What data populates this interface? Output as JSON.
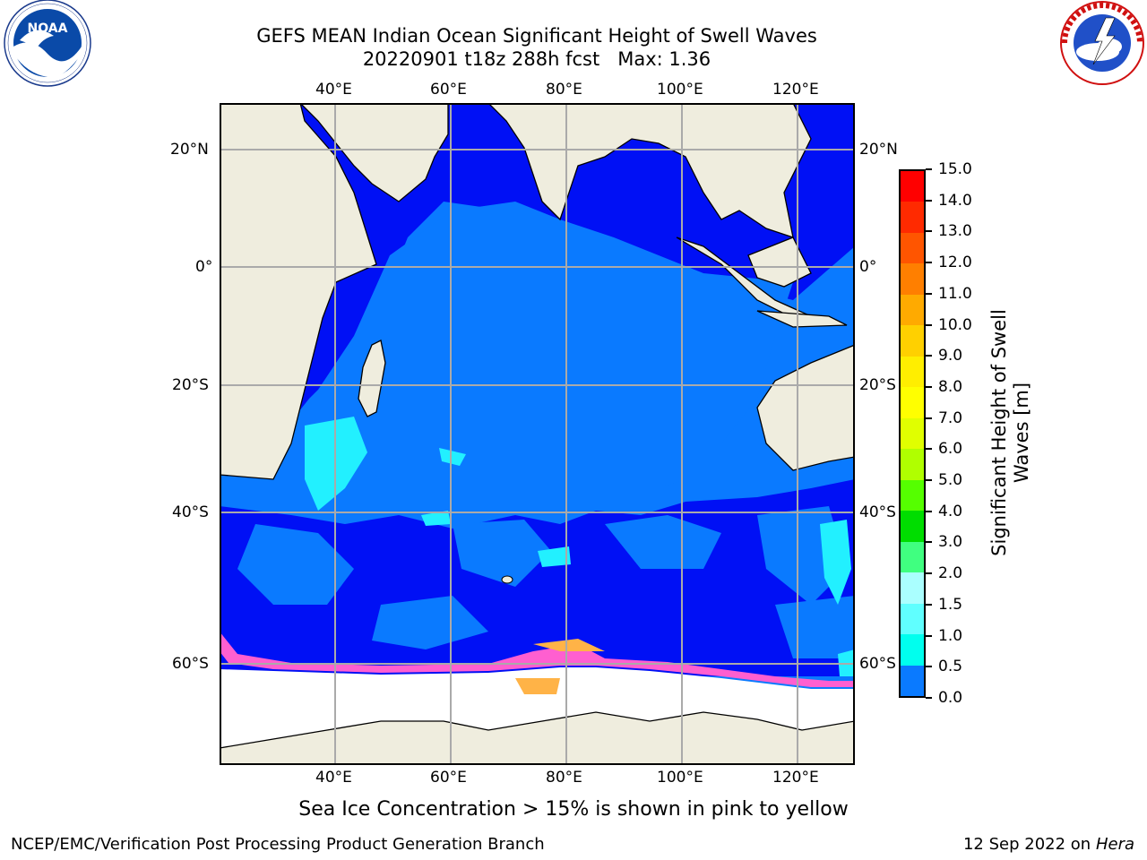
{
  "title": {
    "line1": "GEFS MEAN Indian Ocean Significant Height of Swell Waves",
    "line2": "20220901 t18z 288h fcst   Max: 1.36"
  },
  "logos": {
    "noaa_text": "NOAA",
    "noaa_ring": "NATIONAL OCEANIC AND ATMOSPHERIC ADMINISTRATION · U.S. DEPARTMENT OF COMMERCE",
    "nws_ring": "NATIONAL WEATHER SERVICE"
  },
  "map": {
    "lon_ticks": [
      "40°E",
      "60°E",
      "80°E",
      "100°E",
      "120°E"
    ],
    "lat_ticks": [
      "20°N",
      "0°",
      "20°S",
      "40°S",
      "60°S"
    ],
    "colors": {
      "land": "#efedde",
      "sea_dark": "#0010f5",
      "sea_mid": "#0a7aff",
      "sea_light": "#22f0ff",
      "ice_pink": "#ff5fd0",
      "ice_orange": "#ffb347",
      "ice_white": "#ffffff"
    }
  },
  "colorbar": {
    "label": "Significant Height of Swell Waves [m]",
    "ticks": [
      "15.0",
      "14.0",
      "13.0",
      "12.0",
      "11.0",
      "10.0",
      "9.0",
      "8.0",
      "7.0",
      "6.0",
      "5.0",
      "4.0",
      "3.0",
      "2.0",
      "1.5",
      "1.0",
      "0.5",
      "0.0"
    ],
    "colors": [
      "#ff0000",
      "#ff2a00",
      "#ff5500",
      "#ff7f00",
      "#ffaa00",
      "#ffd000",
      "#ffee00",
      "#ffff00",
      "#e0ff00",
      "#b0ff00",
      "#55ff00",
      "#00dd00",
      "#40ff80",
      "#aaffff",
      "#60ffff",
      "#00ffee",
      "#0a7aff",
      "#0010f5"
    ]
  },
  "note": "Sea Ice Concentration > 15% is shown in pink to yellow",
  "footer": {
    "left": "NCEP/EMC/Verification Post Processing Product Generation Branch",
    "date": "12 Sep 2022 on",
    "machine": "Hera"
  }
}
